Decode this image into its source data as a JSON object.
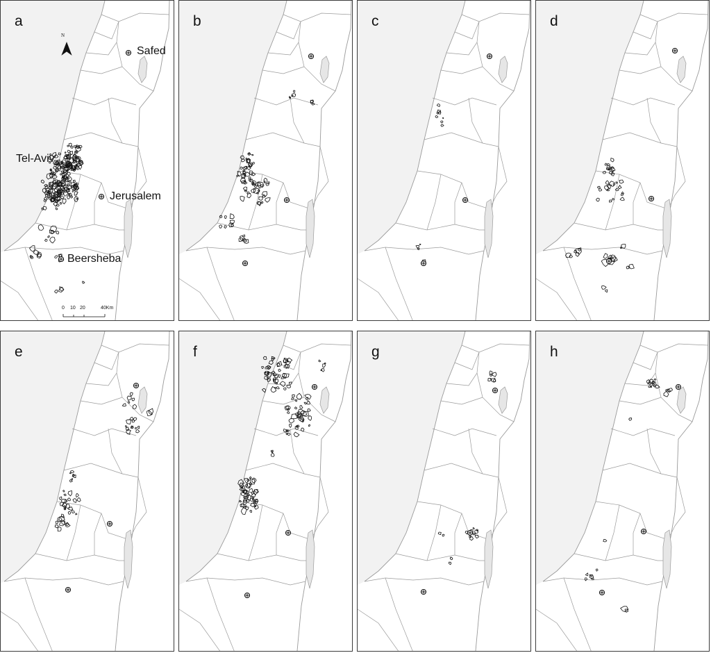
{
  "figure": {
    "panels": [
      {
        "label": "a"
      },
      {
        "label": "b"
      },
      {
        "label": "c"
      },
      {
        "label": "d"
      },
      {
        "label": "e"
      },
      {
        "label": "f"
      },
      {
        "label": "g"
      },
      {
        "label": "h"
      }
    ],
    "cities": {
      "safed": "Safed",
      "tel_aviv": "Tel-Aviv",
      "jerusalem": "Jerusalem",
      "beersheba": "Beersheba"
    },
    "north_arrow": {
      "label": "N",
      "icon": "north-arrow-icon"
    },
    "scale_bar": {
      "tick_labels": [
        "0",
        "10",
        "20",
        "40Km"
      ]
    },
    "colors": {
      "sea": "#f2f2f2",
      "boundary": "#9a9a9a",
      "lake": "#e6e6e6",
      "cluster_outline": "#111111",
      "frame": "#3a3a3a"
    }
  }
}
